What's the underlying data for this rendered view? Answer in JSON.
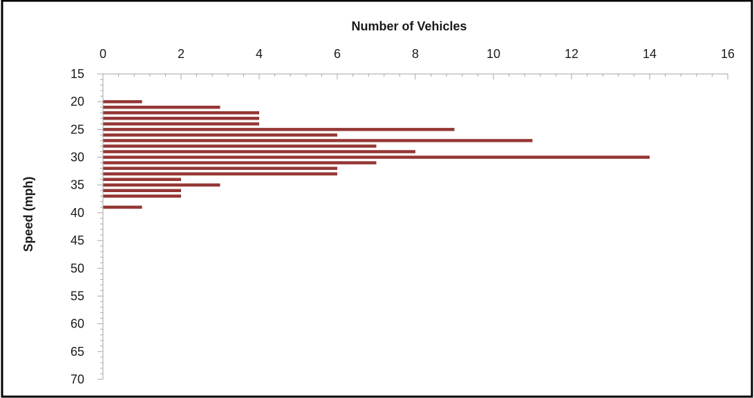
{
  "chart_data": {
    "type": "bar",
    "orientation": "horizontal",
    "title": "",
    "xlabel": "Number of Vehicles",
    "ylabel": "Speed (mph)",
    "x_axis_position": "top",
    "xlim": [
      0,
      16
    ],
    "x_ticks": [
      0,
      2,
      4,
      6,
      8,
      10,
      12,
      14,
      16
    ],
    "x_minor_step": 0.4,
    "ylim": [
      15,
      70
    ],
    "y_reversed": true,
    "y_ticks": [
      15,
      20,
      25,
      30,
      35,
      40,
      45,
      50,
      55,
      60,
      65,
      70
    ],
    "y_minor_step": 1,
    "grid": false,
    "legend": "none",
    "bar_color": "#953735",
    "axis_color": "#a6a6a6",
    "categories": [
      20,
      21,
      22,
      23,
      24,
      25,
      26,
      27,
      28,
      29,
      30,
      31,
      32,
      33,
      34,
      35,
      36,
      37,
      38,
      39
    ],
    "values": [
      1,
      3,
      4,
      4,
      4,
      9,
      6,
      11,
      7,
      8,
      14,
      7,
      6,
      6,
      2,
      3,
      2,
      2,
      0,
      1
    ]
  }
}
